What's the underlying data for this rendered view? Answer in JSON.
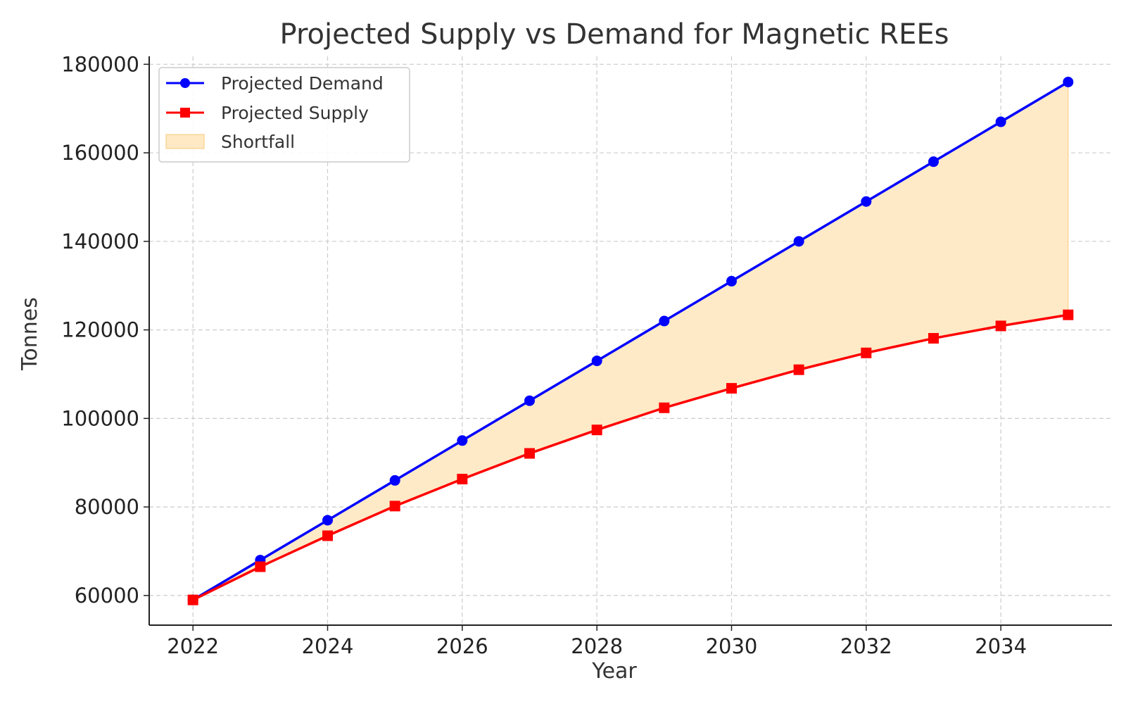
{
  "chart_data": {
    "type": "line",
    "title": "Projected Supply vs Demand for Magnetic REEs",
    "xlabel": "Year",
    "ylabel": "Tonnes",
    "x": [
      2022,
      2023,
      2024,
      2025,
      2026,
      2027,
      2028,
      2029,
      2030,
      2031,
      2032,
      2033,
      2034,
      2035
    ],
    "xlim": [
      2021.35,
      2035.65
    ],
    "ylim": [
      53300,
      181800
    ],
    "xticks": [
      2022,
      2024,
      2026,
      2028,
      2030,
      2032,
      2034
    ],
    "yticks": [
      60000,
      80000,
      100000,
      120000,
      140000,
      160000,
      180000
    ],
    "grid": true,
    "legend_position": "top-left",
    "series": [
      {
        "name": "Projected Demand",
        "color": "#0000ff",
        "marker": "circle",
        "values": [
          59000,
          68000,
          77000,
          86000,
          95000,
          104000,
          113000,
          122000,
          131000,
          140000,
          149000,
          158000,
          167000,
          176000
        ]
      },
      {
        "name": "Projected Supply",
        "color": "#ff0000",
        "marker": "square",
        "values": [
          59000,
          66500,
          73500,
          80200,
          86300,
          92100,
          97400,
          102400,
          106800,
          111000,
          114800,
          118100,
          120900,
          123400
        ]
      }
    ],
    "fill": {
      "name": "Shortfall",
      "between": [
        "Projected Demand",
        "Projected Supply"
      ],
      "color": "#ffe9c4",
      "edge_color": "#f7c97a"
    }
  }
}
